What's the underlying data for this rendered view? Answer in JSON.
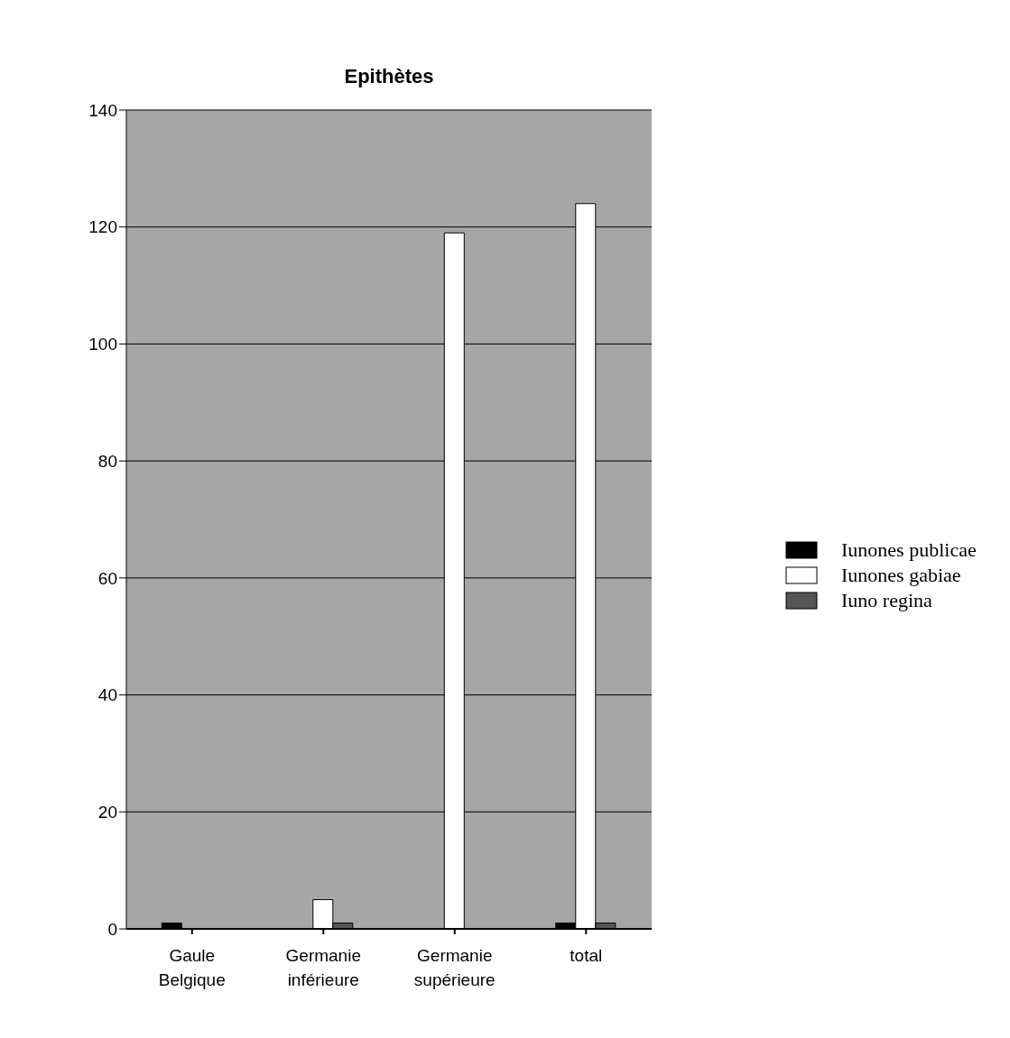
{
  "chart_data": {
    "type": "bar",
    "title": "Epithètes",
    "categories": [
      "Gaule Belgique",
      "Germanie inférieure",
      "Germanie supérieure",
      "total"
    ],
    "series": [
      {
        "name": "Iunones publicae",
        "color": "#000000",
        "values": [
          1,
          0,
          0,
          1
        ]
      },
      {
        "name": "Iunones gabiae",
        "color": "#ffffff",
        "values": [
          0,
          5,
          119,
          124
        ]
      },
      {
        "name": "Iuno regina",
        "color": "#555555",
        "values": [
          0,
          1,
          0,
          1
        ]
      }
    ],
    "ylim": [
      0,
      140
    ],
    "yticks": [
      0,
      20,
      40,
      60,
      80,
      100,
      120,
      140
    ],
    "grid": "y",
    "legend": "right"
  }
}
